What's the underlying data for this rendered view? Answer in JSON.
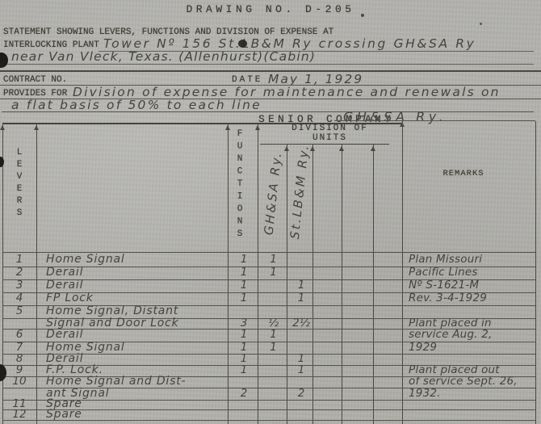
{
  "page": {
    "drawing_no": "DRAWING NO. D-205",
    "statement_line1": "STATEMENT SHOWING LEVERS, FUNCTIONS AND DIVISION OF EXPENSE AT",
    "interlocking_label": "INTERLOCKING PLANT",
    "plant_name_line1": "Tower Nº 156 St.LB&M Ry crossing GH&SA Ry",
    "plant_name_line2": "near Van Vleck, Texas. (Allenhurst)(Cabin)",
    "contract_label": "CONTRACT NO.",
    "date_label": "DATE",
    "date_value": "May 1, 1929",
    "provides_label": "PROVIDES FOR",
    "provides_line1": "Division of expense for maintenance and renewals on",
    "provides_line2": "a flat basis of 50% to each line",
    "senior_company_label": "SENIOR COMPANY",
    "senior_company_value": "GH&SA Ry."
  },
  "table": {
    "levers_header": "LEVERS",
    "functions_header": "FUNCTIONS",
    "division_header_line1": "DIVISION OF",
    "division_header_line2": "UNITS",
    "unit_columns": [
      "GH&SA Ry.",
      "St.LB&M Ry."
    ],
    "remarks_header": "REMARKS",
    "rows": [
      {
        "lever": "1",
        "description": "Home Signal",
        "functions": "1",
        "ghsa_units": "1",
        "stlbm_units": "",
        "remarks": "Plan Missouri"
      },
      {
        "lever": "2",
        "description": "Derail",
        "functions": "1",
        "ghsa_units": "1",
        "stlbm_units": "",
        "remarks": "Pacific Lines"
      },
      {
        "lever": "3",
        "description": "Derail",
        "functions": "1",
        "ghsa_units": "",
        "stlbm_units": "1",
        "remarks": "Nº S-1621-M"
      },
      {
        "lever": "4",
        "description": "FP Lock",
        "functions": "1",
        "ghsa_units": "",
        "stlbm_units": "1",
        "remarks": "Rev. 3-4-1929"
      },
      {
        "lever": "5",
        "description": "Home Signal, Distant",
        "functions": "",
        "ghsa_units": "",
        "stlbm_units": "",
        "remarks": ""
      },
      {
        "lever": "",
        "description": "Signal and Door Lock",
        "functions": "3",
        "ghsa_units": "½",
        "stlbm_units": "2½",
        "remarks": "Plant placed in"
      },
      {
        "lever": "6",
        "description": "Derail",
        "functions": "1",
        "ghsa_units": "1",
        "stlbm_units": "",
        "remarks": "service Aug. 2,"
      },
      {
        "lever": "7",
        "description": "Home Signal",
        "functions": "1",
        "ghsa_units": "1",
        "stlbm_units": "",
        "remarks": "1929"
      },
      {
        "lever": "8",
        "description": "Derail",
        "functions": "1",
        "ghsa_units": "",
        "stlbm_units": "1",
        "remarks": ""
      },
      {
        "lever": "9",
        "description": "F.P. Lock.",
        "functions": "1",
        "ghsa_units": "",
        "stlbm_units": "1",
        "remarks": "Plant placed out"
      },
      {
        "lever": "10",
        "description": "Home Signal and Dist-",
        "functions": "",
        "ghsa_units": "",
        "stlbm_units": "",
        "remarks": "of service Sept. 26,"
      },
      {
        "lever": "",
        "description": "ant Signal",
        "functions": "2",
        "ghsa_units": "",
        "stlbm_units": "2",
        "remarks": "1932."
      },
      {
        "lever": "11",
        "description": "Spare",
        "functions": "",
        "ghsa_units": "",
        "stlbm_units": "",
        "remarks": ""
      },
      {
        "lever": "12",
        "description": "Spare",
        "functions": "",
        "ghsa_units": "",
        "stlbm_units": "",
        "remarks": ""
      },
      {
        "lever": "",
        "description": "",
        "functions": "",
        "ghsa_units": "",
        "stlbm_units": "",
        "remarks": ""
      }
    ]
  },
  "colors": {
    "paper": "#b3b2ae",
    "typed_ink": "#3a3930",
    "pencil": "#45443e",
    "rule": "#4a4940"
  }
}
